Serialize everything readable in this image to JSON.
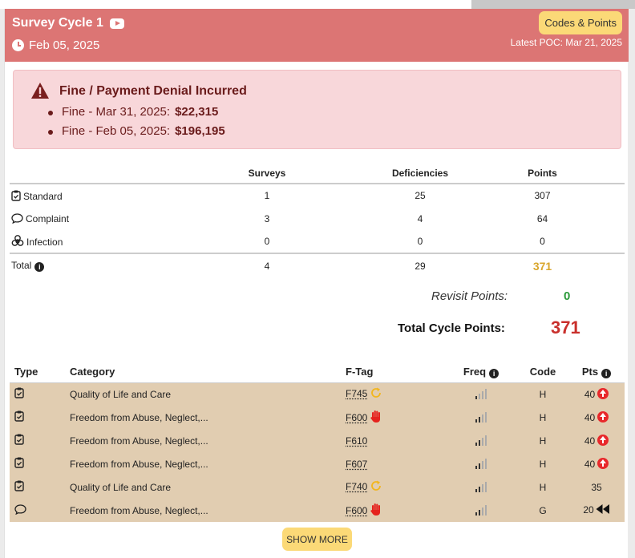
{
  "header": {
    "title": "Survey Cycle 1",
    "date": "Feb 05, 2025",
    "codes_button": "Codes & Points",
    "latest_poc": "Latest POC: Mar 21, 2025"
  },
  "alert": {
    "title": "Fine / Payment Denial Incurred",
    "items": [
      {
        "label": "Fine - Mar 31, 2025:",
        "amount": "$22,315"
      },
      {
        "label": "Fine - Feb 05, 2025:",
        "amount": "$196,195"
      }
    ]
  },
  "summary": {
    "headers": [
      "Surveys",
      "Deficiencies",
      "Points"
    ],
    "rows": [
      {
        "label": "Standard",
        "icon": "clipboard-check-icon",
        "surveys": "1",
        "deficiencies": "25",
        "points": "307"
      },
      {
        "label": "Complaint",
        "icon": "speech-bubble-icon",
        "surveys": "3",
        "deficiencies": "4",
        "points": "64"
      },
      {
        "label": "Infection",
        "icon": "biohazard-icon",
        "surveys": "0",
        "deficiencies": "0",
        "points": "0"
      }
    ],
    "total": {
      "label": "Total",
      "surveys": "4",
      "deficiencies": "29",
      "points": "371"
    },
    "revisit_label": "Revisit Points:",
    "revisit_value": "0",
    "total_cycle_label": "Total Cycle Points:",
    "total_cycle_value": "371"
  },
  "deficiencies": {
    "headers": {
      "type": "Type",
      "category": "Category",
      "ftag": "F-Tag",
      "freq": "Freq",
      "code": "Code",
      "pts": "Pts"
    },
    "rows": [
      {
        "type_icon": "clipboard-check-icon",
        "category": "Quality of Life and Care",
        "ftag": "F745",
        "ftag_icon": "repeat-arrow-icon",
        "freq_level": 1,
        "code": "H",
        "pts": "40",
        "pts_icon": "arrow-up-circle-icon"
      },
      {
        "type_icon": "clipboard-check-icon",
        "category": "Freedom from Abuse, Neglect,...",
        "ftag": "F600",
        "ftag_icon": "hand-stop-icon",
        "freq_level": 2,
        "code": "H",
        "pts": "40",
        "pts_icon": "arrow-up-circle-icon"
      },
      {
        "type_icon": "clipboard-check-icon",
        "category": "Freedom from Abuse, Neglect,...",
        "ftag": "F610",
        "ftag_icon": "",
        "freq_level": 2,
        "code": "H",
        "pts": "40",
        "pts_icon": "arrow-up-circle-icon"
      },
      {
        "type_icon": "clipboard-check-icon",
        "category": "Freedom from Abuse, Neglect,...",
        "ftag": "F607",
        "ftag_icon": "",
        "freq_level": 2,
        "code": "H",
        "pts": "40",
        "pts_icon": "arrow-up-circle-icon"
      },
      {
        "type_icon": "clipboard-check-icon",
        "category": "Quality of Life and Care",
        "ftag": "F740",
        "ftag_icon": "repeat-arrow-icon",
        "freq_level": 2,
        "code": "H",
        "pts": "35",
        "pts_icon": ""
      },
      {
        "type_icon": "speech-bubble-icon",
        "category": "Freedom from Abuse, Neglect,...",
        "ftag": "F600",
        "ftag_icon": "hand-stop-icon",
        "freq_level": 2,
        "code": "G",
        "pts": "20",
        "pts_icon": "rewind-icon"
      }
    ]
  },
  "show_more": "SHOW MORE",
  "colors": {
    "header_bg": "#dc7574",
    "alert_bg": "#f8d7da",
    "row_bg": "#e1cdb1",
    "button_bg": "#fbd977",
    "points_gold": "#d9a72e",
    "revisit_green": "#2c9a3b",
    "total_red": "#c9302c"
  }
}
